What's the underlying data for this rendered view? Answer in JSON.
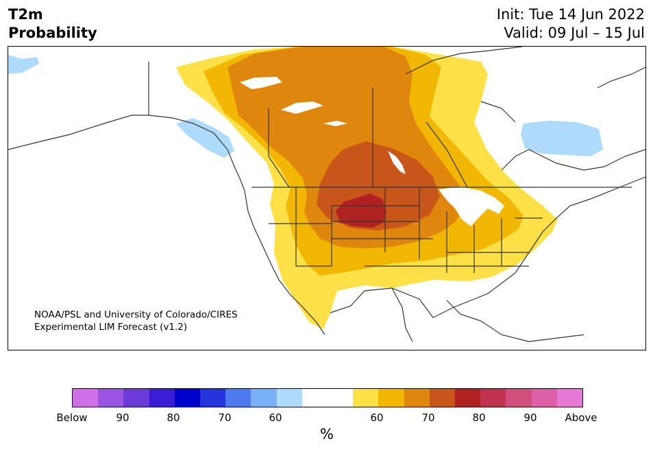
{
  "title_left": {
    "line1": "T2m",
    "line2": "Probability"
  },
  "title_right": {
    "line1": "Init: Tue 14 Jun 2022",
    "line2": "Valid: 09 Jul – 15 Jul"
  },
  "credit": {
    "line1": "NOAA/PSL and University of Colorado/CIRES",
    "line2": "Experimental LIM Forecast (v1.2)"
  },
  "colorbar": {
    "colors": [
      "#d070e8",
      "#9a55e0",
      "#6b3ad8",
      "#3a1ed4",
      "#0000cd",
      "#2535dc",
      "#4f79ee",
      "#7ab0f5",
      "#aedbfb",
      "#ffffff",
      "#ffffff",
      "#ffe048",
      "#f2b705",
      "#df860f",
      "#c8561a",
      "#b02222",
      "#bf3551",
      "#d04f7c",
      "#dc5fa8",
      "#e878d8"
    ],
    "tick_labels": [
      "Below",
      "90",
      "80",
      "70",
      "60",
      "60",
      "70",
      "80",
      "90",
      "Above"
    ],
    "unit": "%"
  },
  "colors": {
    "near_normal_60": "#ffe048",
    "above_60_70": "#f2b705",
    "above_70": "#df860f",
    "above_75": "#c8561a",
    "above_80": "#b02222",
    "below_60": "#aedbfb",
    "coastline": "#333333"
  }
}
